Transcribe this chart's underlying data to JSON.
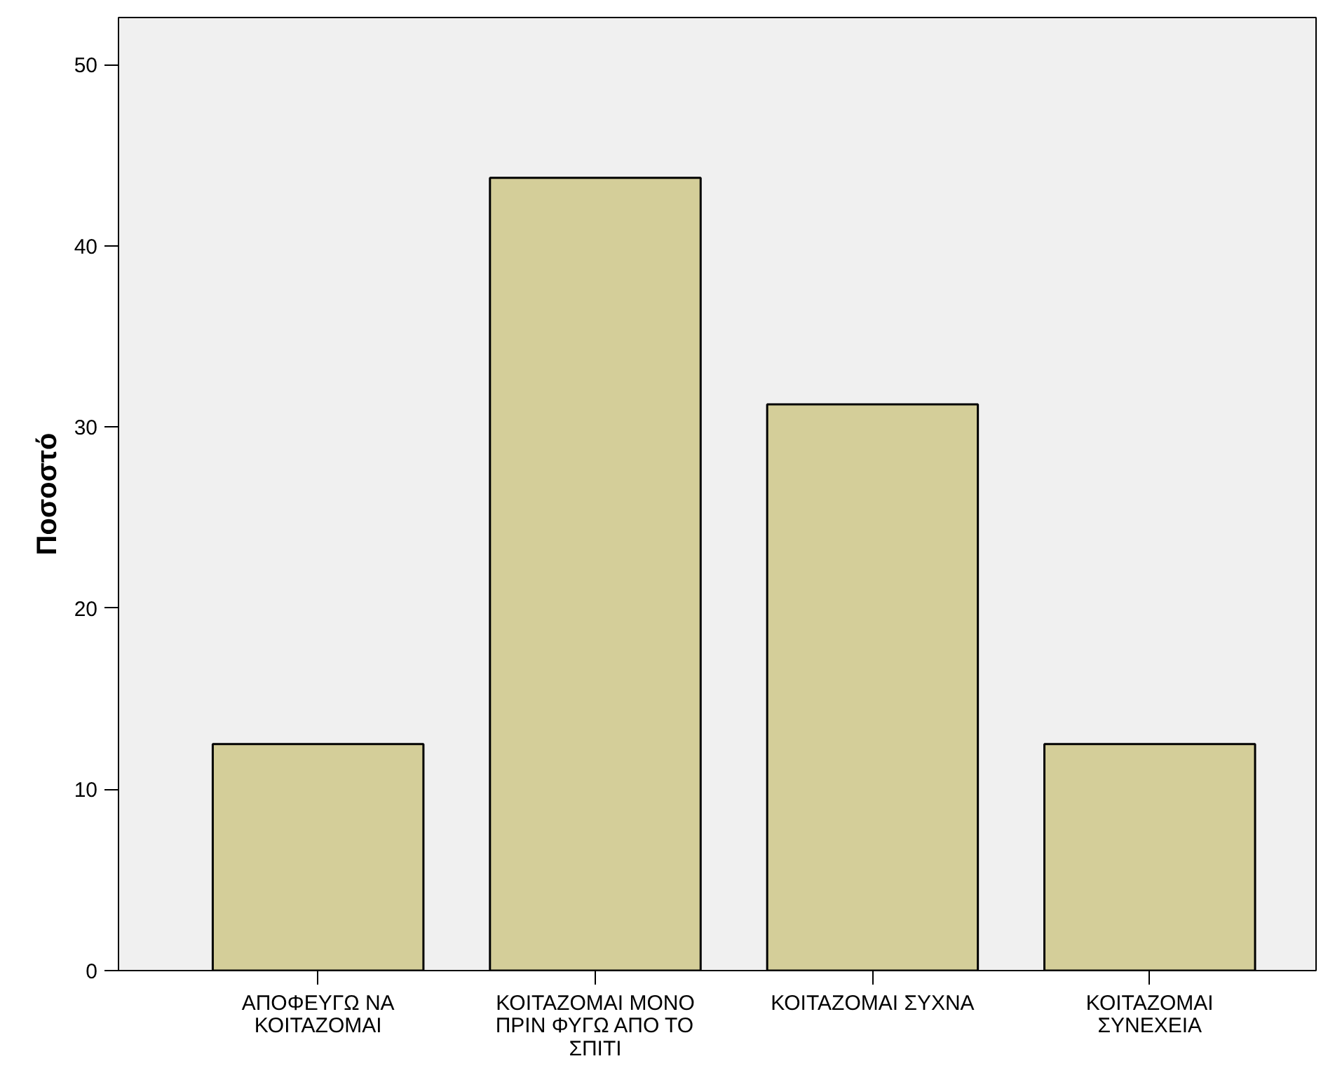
{
  "chart_data": {
    "type": "bar",
    "ylabel": "Ποσοστό",
    "categories": [
      "ΑΠΟΦΕΥΓΩ ΝΑ ΚΟΙΤΑΖΟΜΑΙ",
      "ΚΟΙΤΑΖΟΜΑΙ ΜΟΝΟ ΠΡΙΝ ΦΥΓΩ ΑΠΟ ΤΟ ΣΠΙΤΙ",
      "ΚΟΙΤΑΖΟΜΑΙ ΣΥΧΝΑ",
      "ΚΟΙΤΑΖΟΜΑΙ ΣΥΝΕΧΕΙΑ"
    ],
    "values": [
      12.5,
      43.75,
      31.25,
      12.5
    ],
    "color": "#d4ce99",
    "ylim": [
      0,
      52.6
    ],
    "yticks": [
      0,
      10,
      20,
      30,
      40,
      50
    ],
    "grid": false
  }
}
